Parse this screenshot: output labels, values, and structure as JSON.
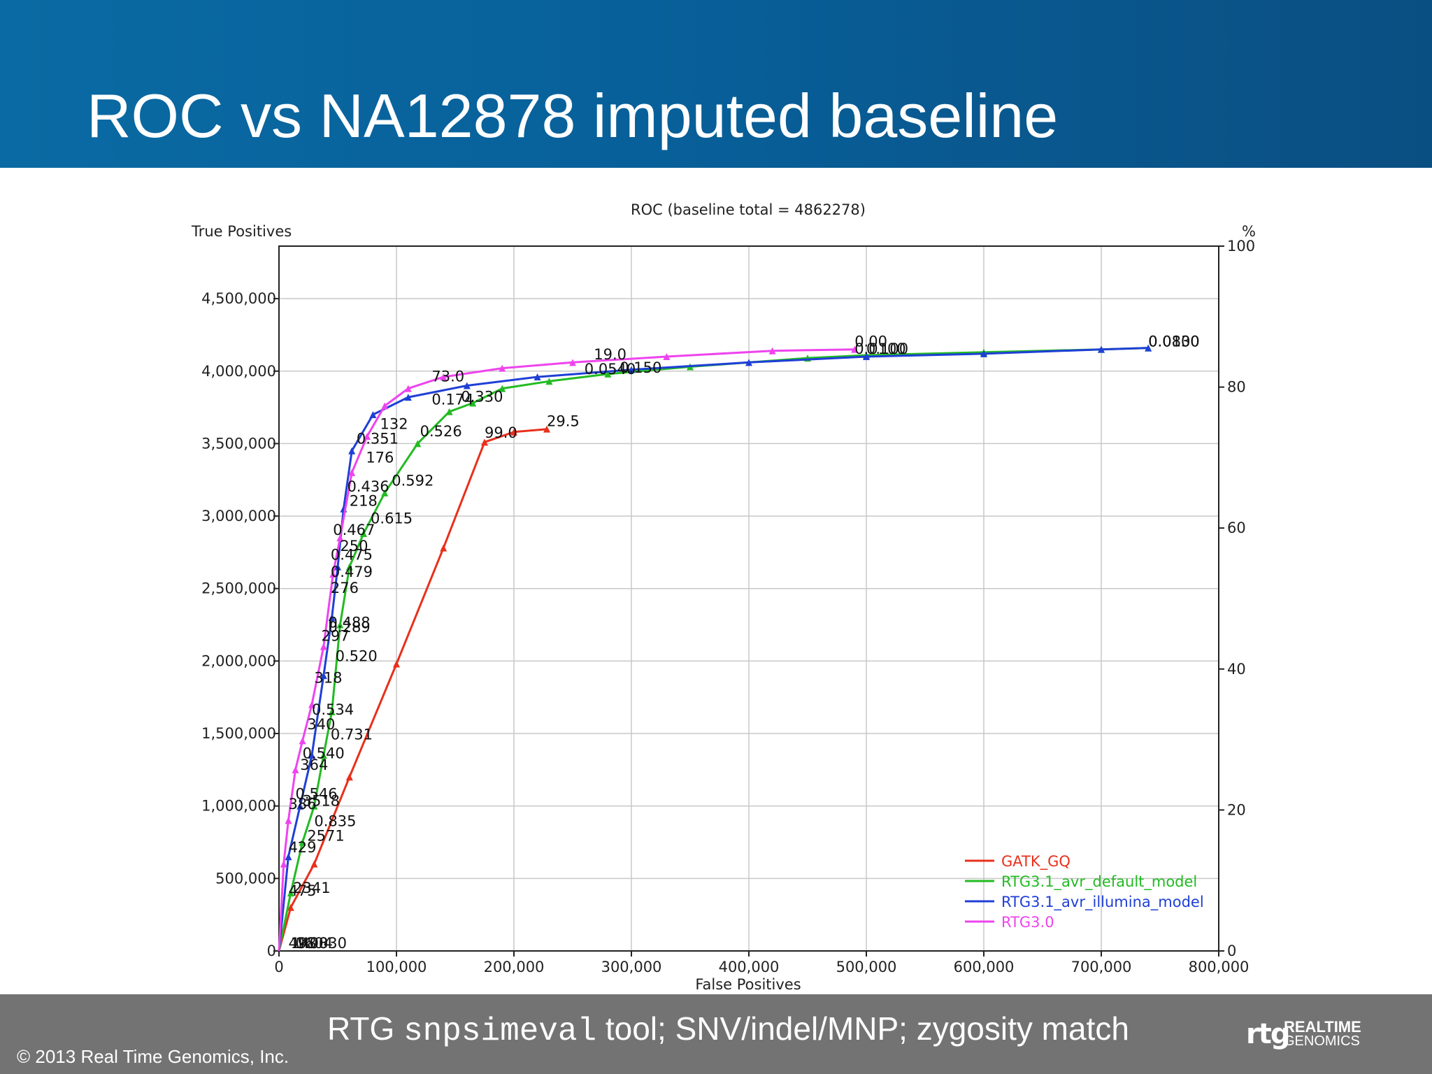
{
  "slide": {
    "title": "ROC vs NA12878 imputed baseline",
    "caption_prefix": "RTG ",
    "caption_code": "snpsimeval",
    "caption_suffix": " tool; SNV/indel/MNP; zygosity match",
    "copyright": "© 2013 Real Time Genomics, Inc.",
    "logo_mark": "rtg",
    "logo_word1": "REALTIME",
    "logo_word2": "GENOMICS"
  },
  "colors": {
    "header": "#0a6aa3",
    "footer": "#737373",
    "GATK_GQ": "#e8301c",
    "RTG3.1_avr_default_model": "#22bb22",
    "RTG3.1_avr_illumina_model": "#1f3fd6",
    "RTG3.0": "#ee44ee"
  },
  "chart_data": {
    "type": "line",
    "title": "ROC (baseline total = 4862278)",
    "xlabel": "False Positives",
    "ylabel": "True Positives",
    "y2label": "%",
    "xlim": [
      0,
      800000
    ],
    "ylim": [
      0,
      4862278
    ],
    "y2lim": [
      0,
      100
    ],
    "grid": true,
    "legend_position": "bottom-right",
    "x_ticks": [
      {
        "v": 0,
        "label": "0"
      },
      {
        "v": 100000,
        "label": "100,000"
      },
      {
        "v": 200000,
        "label": "200,000"
      },
      {
        "v": 300000,
        "label": "300,000"
      },
      {
        "v": 400000,
        "label": "400,000"
      },
      {
        "v": 500000,
        "label": "500,000"
      },
      {
        "v": 600000,
        "label": "600,000"
      },
      {
        "v": 700000,
        "label": "700,000"
      },
      {
        "v": 800000,
        "label": "800,000"
      }
    ],
    "y_ticks": [
      {
        "v": 0,
        "label": "0"
      },
      {
        "v": 500000,
        "label": "500,000"
      },
      {
        "v": 1000000,
        "label": "1,000,000"
      },
      {
        "v": 1500000,
        "label": "1,500,000"
      },
      {
        "v": 2000000,
        "label": "2,000,000"
      },
      {
        "v": 2500000,
        "label": "2,500,000"
      },
      {
        "v": 3000000,
        "label": "3,000,000"
      },
      {
        "v": 3500000,
        "label": "3,500,000"
      },
      {
        "v": 4000000,
        "label": "4,000,000"
      },
      {
        "v": 4500000,
        "label": "4,500,000"
      }
    ],
    "y2_ticks": [
      {
        "v": 0,
        "label": "0"
      },
      {
        "v": 20,
        "label": "20"
      },
      {
        "v": 40,
        "label": "40"
      },
      {
        "v": 60,
        "label": "60"
      },
      {
        "v": 80,
        "label": "80"
      },
      {
        "v": 100,
        "label": "100"
      }
    ],
    "series": [
      {
        "name": "GATK_GQ",
        "x": [
          0,
          10000,
          30000,
          60000,
          100000,
          140000,
          175000,
          200000,
          228000
        ],
        "y": [
          0,
          300000,
          600000,
          1200000,
          1980000,
          2780000,
          3510000,
          3580000,
          3600000
        ],
        "labels": [
          {
            "x": 14000,
            "y": 20000,
            "text": "1604"
          },
          {
            "x": 12000,
            "y": 400000,
            "text": "2341"
          },
          {
            "x": 24000,
            "y": 760000,
            "text": "2571"
          },
          {
            "x": 20000,
            "y": 1000000,
            "text": "3518"
          },
          {
            "x": 175000,
            "y": 3540000,
            "text": "99.0"
          },
          {
            "x": 228000,
            "y": 3620000,
            "text": "29.5"
          }
        ]
      },
      {
        "name": "RTG3.1_avr_default_model",
        "x": [
          0,
          10000,
          20000,
          30000,
          38000,
          45000,
          52000,
          60000,
          72000,
          90000,
          118000,
          145000,
          165000,
          190000,
          230000,
          280000,
          350000,
          450000,
          500000,
          600000,
          700000,
          740000
        ],
        "y": [
          0,
          400000,
          750000,
          1000000,
          1350000,
          1650000,
          2250000,
          2650000,
          2880000,
          3160000,
          3500000,
          3720000,
          3780000,
          3880000,
          3930000,
          3980000,
          4030000,
          4090000,
          4110000,
          4130000,
          4150000,
          4160000
        ],
        "labels": [
          {
            "x": 10000,
            "y": 20000,
            "text": "1400"
          },
          {
            "x": 30000,
            "y": 860000,
            "text": "0.835"
          },
          {
            "x": 44000,
            "y": 1460000,
            "text": "0.731"
          },
          {
            "x": 48000,
            "y": 2000000,
            "text": "0.520"
          },
          {
            "x": 78000,
            "y": 2950000,
            "text": "0.615"
          },
          {
            "x": 96000,
            "y": 3210000,
            "text": "0.592"
          },
          {
            "x": 120000,
            "y": 3550000,
            "text": "0.526"
          },
          {
            "x": 155000,
            "y": 3790000,
            "text": "0.330"
          },
          {
            "x": 290000,
            "y": 3990000,
            "text": "0.150"
          },
          {
            "x": 500000,
            "y": 4120000,
            "text": "0.100"
          },
          {
            "x": 740000,
            "y": 4170000,
            "text": "0.0830"
          }
        ]
      },
      {
        "name": "RTG3.1_avr_illumina_model",
        "x": [
          0,
          8000,
          18000,
          28000,
          38000,
          45000,
          50000,
          55000,
          62000,
          80000,
          110000,
          160000,
          220000,
          300000,
          400000,
          500000,
          600000,
          700000,
          740000
        ],
        "y": [
          0,
          650000,
          1000000,
          1350000,
          1900000,
          2300000,
          2650000,
          3050000,
          3450000,
          3700000,
          3820000,
          3900000,
          3960000,
          4010000,
          4060000,
          4100000,
          4120000,
          4150000,
          4160000
        ],
        "labels": [
          {
            "x": 14000,
            "y": 20000,
            "text": "0.0830"
          },
          {
            "x": 14000,
            "y": 1050000,
            "text": "0.546"
          },
          {
            "x": 20000,
            "y": 1330000,
            "text": "0.540"
          },
          {
            "x": 28000,
            "y": 1630000,
            "text": "0.534"
          },
          {
            "x": 42000,
            "y": 2200000,
            "text": "0.289"
          },
          {
            "x": 42000,
            "y": 2230000,
            "text": "0.488"
          },
          {
            "x": 44000,
            "y": 2580000,
            "text": "0.479"
          },
          {
            "x": 44000,
            "y": 2700000,
            "text": "0.475"
          },
          {
            "x": 46000,
            "y": 2870000,
            "text": "0.467"
          },
          {
            "x": 58000,
            "y": 3170000,
            "text": "0.436"
          },
          {
            "x": 66000,
            "y": 3500000,
            "text": "0.351"
          },
          {
            "x": 130000,
            "y": 3770000,
            "text": "0.174"
          },
          {
            "x": 260000,
            "y": 3980000,
            "text": "0.0540"
          },
          {
            "x": 490000,
            "y": 4120000,
            "text": "0.0100"
          },
          {
            "x": 740000,
            "y": 4170000,
            "text": "0.0100"
          }
        ]
      },
      {
        "name": "RTG3.0",
        "x": [
          0,
          4000,
          8000,
          14000,
          20000,
          28000,
          38000,
          46000,
          52000,
          62000,
          75000,
          90000,
          110000,
          140000,
          190000,
          250000,
          330000,
          420000,
          490000
        ],
        "y": [
          0,
          600000,
          900000,
          1250000,
          1450000,
          1700000,
          2100000,
          2600000,
          2850000,
          3300000,
          3550000,
          3760000,
          3880000,
          3960000,
          4020000,
          4060000,
          4100000,
          4140000,
          4150000
        ],
        "labels": [
          {
            "x": 8000,
            "y": 20000,
            "text": "498"
          },
          {
            "x": 8000,
            "y": 380000,
            "text": "475"
          },
          {
            "x": 8000,
            "y": 680000,
            "text": "429"
          },
          {
            "x": 8000,
            "y": 980000,
            "text": "386"
          },
          {
            "x": 18000,
            "y": 1250000,
            "text": "364"
          },
          {
            "x": 24000,
            "y": 1530000,
            "text": "340"
          },
          {
            "x": 30000,
            "y": 1850000,
            "text": "318"
          },
          {
            "x": 36000,
            "y": 2140000,
            "text": "297"
          },
          {
            "x": 44000,
            "y": 2470000,
            "text": "276"
          },
          {
            "x": 52000,
            "y": 2760000,
            "text": "250"
          },
          {
            "x": 60000,
            "y": 3070000,
            "text": "218"
          },
          {
            "x": 74000,
            "y": 3370000,
            "text": "176"
          },
          {
            "x": 86000,
            "y": 3600000,
            "text": "132"
          },
          {
            "x": 130000,
            "y": 3930000,
            "text": "73.0"
          },
          {
            "x": 268000,
            "y": 4080000,
            "text": "19.0"
          },
          {
            "x": 490000,
            "y": 4170000,
            "text": "0.00"
          }
        ]
      }
    ]
  }
}
